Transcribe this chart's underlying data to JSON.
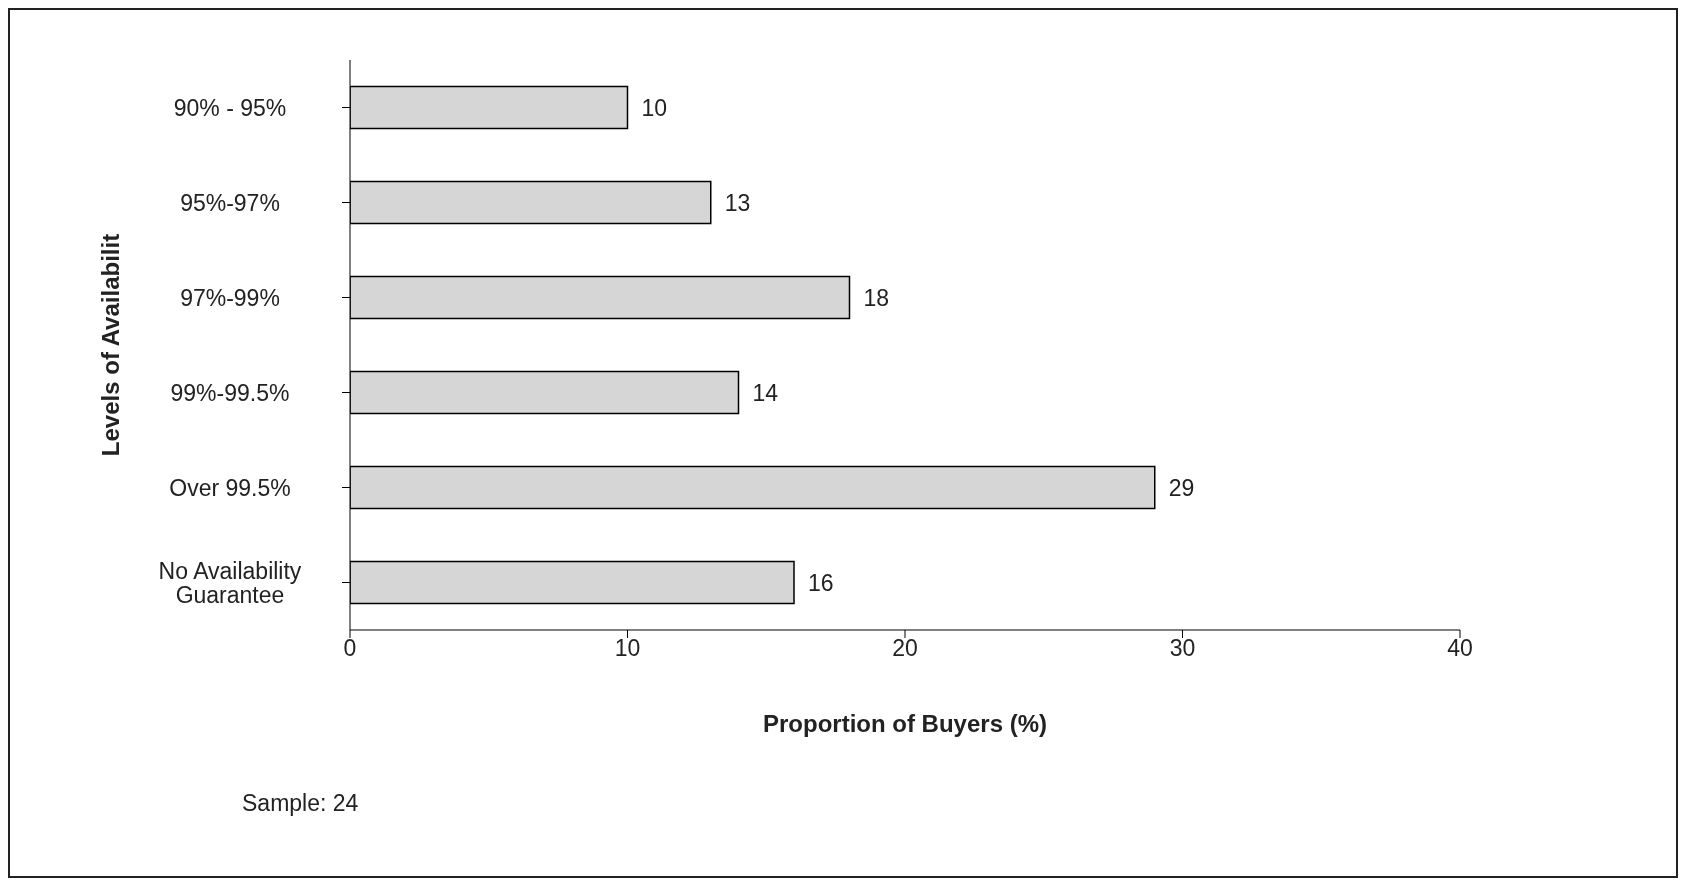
{
  "chart_data": {
    "type": "bar",
    "orientation": "horizontal",
    "xlabel": "Proportion of Buyers (%)",
    "ylabel": "Levels of Availabilit",
    "categories": [
      "90% - 95%",
      "95%-97%",
      "97%-99%",
      "99%-99.5%",
      "Over 99.5%",
      "No Availability Guarantee"
    ],
    "values": [
      10,
      13,
      18,
      14,
      29,
      16
    ],
    "color": "#d6d6d6",
    "xlim": [
      0,
      40
    ],
    "xticks": [
      0,
      10,
      20,
      30,
      40
    ],
    "data_labels": true,
    "annotations": [
      "Sample: 24"
    ]
  }
}
